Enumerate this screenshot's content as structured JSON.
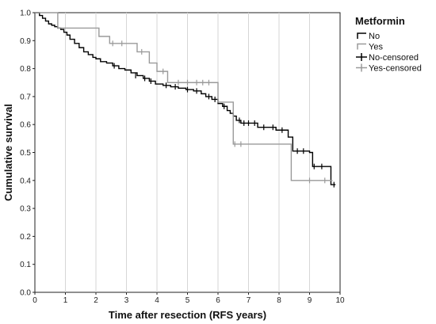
{
  "chart_data": {
    "type": "line",
    "subtype": "kaplan-meier step",
    "xlabel": "Time after resection (RFS years)",
    "ylabel": "Cumulative survival",
    "xlim": [
      0,
      10
    ],
    "ylim": [
      0.0,
      1.0
    ],
    "xticks": [
      "0",
      "1",
      "2",
      "3",
      "4",
      "5",
      "6",
      "7",
      "8",
      "9",
      "10"
    ],
    "yticks": [
      "0.0",
      "0.1",
      "0.2",
      "0.3",
      "0.4",
      "0.5",
      "0.6",
      "0.7",
      "0.8",
      "0.9",
      "1.0"
    ],
    "grid": "vertical",
    "legend": {
      "title": "Metformin",
      "placement": "right",
      "entries": [
        {
          "label": "No",
          "kind": "step",
          "color": "#000000"
        },
        {
          "label": "Yes",
          "kind": "step",
          "color": "#9a9a9a"
        },
        {
          "label": "No-censored",
          "kind": "censor",
          "color": "#000000"
        },
        {
          "label": "Yes-censored",
          "kind": "censor",
          "color": "#9a9a9a"
        }
      ]
    },
    "series": [
      {
        "name": "No",
        "color": "#000000",
        "x": [
          0,
          0.15,
          0.25,
          0.35,
          0.45,
          0.55,
          0.65,
          0.75,
          0.85,
          0.95,
          1.05,
          1.15,
          1.3,
          1.45,
          1.6,
          1.75,
          1.9,
          2.0,
          2.15,
          2.35,
          2.55,
          2.75,
          2.95,
          3.15,
          3.35,
          3.55,
          3.75,
          3.95,
          4.2,
          4.45,
          4.7,
          4.95,
          5.2,
          5.45,
          5.6,
          5.8,
          6.0,
          6.15,
          6.3,
          6.4,
          6.5,
          6.6,
          6.75,
          7.3,
          7.9,
          8.3,
          8.45,
          9.0,
          9.1,
          9.7,
          9.85
        ],
        "y": [
          1.0,
          0.99,
          0.98,
          0.97,
          0.96,
          0.955,
          0.95,
          0.945,
          0.94,
          0.93,
          0.92,
          0.905,
          0.89,
          0.875,
          0.86,
          0.85,
          0.84,
          0.835,
          0.825,
          0.82,
          0.81,
          0.8,
          0.795,
          0.785,
          0.775,
          0.765,
          0.755,
          0.745,
          0.74,
          0.735,
          0.73,
          0.725,
          0.72,
          0.71,
          0.7,
          0.69,
          0.675,
          0.665,
          0.65,
          0.64,
          0.63,
          0.615,
          0.605,
          0.59,
          0.58,
          0.555,
          0.505,
          0.5,
          0.45,
          0.385,
          0.385
        ],
        "censored": [
          {
            "x": 2.6,
            "y": 0.81
          },
          {
            "x": 3.3,
            "y": 0.775
          },
          {
            "x": 3.6,
            "y": 0.765
          },
          {
            "x": 3.8,
            "y": 0.755
          },
          {
            "x": 4.3,
            "y": 0.74
          },
          {
            "x": 4.6,
            "y": 0.735
          },
          {
            "x": 5.0,
            "y": 0.725
          },
          {
            "x": 5.3,
            "y": 0.72
          },
          {
            "x": 5.7,
            "y": 0.7
          },
          {
            "x": 5.9,
            "y": 0.69
          },
          {
            "x": 6.2,
            "y": 0.665
          },
          {
            "x": 6.7,
            "y": 0.615
          },
          {
            "x": 6.85,
            "y": 0.605
          },
          {
            "x": 7.0,
            "y": 0.605
          },
          {
            "x": 7.2,
            "y": 0.605
          },
          {
            "x": 7.5,
            "y": 0.59
          },
          {
            "x": 7.8,
            "y": 0.59
          },
          {
            "x": 8.1,
            "y": 0.58
          },
          {
            "x": 8.6,
            "y": 0.505
          },
          {
            "x": 8.8,
            "y": 0.505
          },
          {
            "x": 9.15,
            "y": 0.45
          },
          {
            "x": 9.4,
            "y": 0.45
          },
          {
            "x": 9.8,
            "y": 0.385
          }
        ]
      },
      {
        "name": "Yes",
        "color": "#9a9a9a",
        "x": [
          0,
          0.6,
          0.75,
          2.0,
          2.1,
          2.45,
          3.35,
          3.75,
          4.0,
          4.35,
          6.0,
          6.5,
          8.4,
          9.75
        ],
        "y": [
          1.0,
          1.0,
          0.945,
          0.945,
          0.915,
          0.89,
          0.86,
          0.82,
          0.79,
          0.75,
          0.68,
          0.53,
          0.4,
          0.4
        ],
        "censored": [
          {
            "x": 2.55,
            "y": 0.89
          },
          {
            "x": 2.85,
            "y": 0.89
          },
          {
            "x": 3.5,
            "y": 0.86
          },
          {
            "x": 4.2,
            "y": 0.79
          },
          {
            "x": 4.7,
            "y": 0.75
          },
          {
            "x": 5.0,
            "y": 0.75
          },
          {
            "x": 5.3,
            "y": 0.75
          },
          {
            "x": 5.5,
            "y": 0.75
          },
          {
            "x": 5.7,
            "y": 0.75
          },
          {
            "x": 6.55,
            "y": 0.53
          },
          {
            "x": 6.75,
            "y": 0.53
          },
          {
            "x": 9.0,
            "y": 0.4
          },
          {
            "x": 9.5,
            "y": 0.4
          }
        ]
      }
    ]
  }
}
